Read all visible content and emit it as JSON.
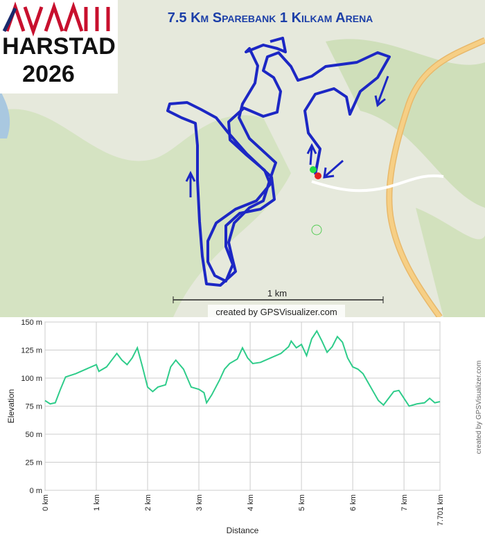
{
  "header": {
    "title": "7.5 Km Sparebank 1 Kilkam Arena",
    "logo": {
      "line1": "HARSTAD",
      "line2": "2026"
    }
  },
  "map": {
    "scale_label": "1 km",
    "credit": "created by GPSVisualizer.com"
  },
  "chart_data": {
    "type": "line",
    "x_label": "Distance",
    "y_label": "Elevation",
    "credit": "created by GPSVisualizer.com",
    "x": [
      0,
      0.1,
      0.2,
      0.3,
      0.4,
      0.6,
      0.8,
      1.0,
      1.05,
      1.2,
      1.3,
      1.4,
      1.5,
      1.6,
      1.7,
      1.8,
      1.9,
      2.0,
      2.1,
      2.2,
      2.35,
      2.45,
      2.55,
      2.7,
      2.85,
      3.0,
      3.1,
      3.15,
      3.25,
      3.4,
      3.5,
      3.6,
      3.75,
      3.85,
      3.95,
      4.05,
      4.2,
      4.4,
      4.6,
      4.75,
      4.8,
      4.9,
      5.0,
      5.1,
      5.2,
      5.3,
      5.4,
      5.5,
      5.6,
      5.7,
      5.8,
      5.9,
      6.0,
      6.1,
      6.2,
      6.3,
      6.4,
      6.5,
      6.6,
      6.7,
      6.8,
      6.9,
      7.0,
      7.1,
      7.25,
      7.4,
      7.5,
      7.6,
      7.701
    ],
    "values": [
      80,
      77,
      78,
      90,
      101,
      104,
      108,
      112,
      106,
      110,
      116,
      122,
      116,
      112,
      118,
      127,
      110,
      92,
      88,
      92,
      94,
      110,
      116,
      108,
      92,
      90,
      87,
      78,
      85,
      98,
      108,
      113,
      117,
      127,
      118,
      113,
      114,
      118,
      122,
      128,
      133,
      127,
      130,
      120,
      135,
      142,
      133,
      123,
      128,
      137,
      132,
      118,
      110,
      108,
      104,
      96,
      88,
      80,
      76,
      82,
      88,
      89,
      82,
      75,
      77,
      78,
      82,
      78,
      79
    ],
    "color": "#2ecc8a",
    "xlim": [
      0,
      7.701
    ],
    "ylim": [
      0,
      150
    ],
    "xticks": [
      {
        "value": 0,
        "label": "0 km"
      },
      {
        "value": 1,
        "label": "1 km"
      },
      {
        "value": 2,
        "label": "2 km"
      },
      {
        "value": 3,
        "label": "3 km"
      },
      {
        "value": 4,
        "label": "4 km"
      },
      {
        "value": 5,
        "label": "5 km"
      },
      {
        "value": 6,
        "label": "6 km"
      },
      {
        "value": 7,
        "label": "7 km"
      },
      {
        "value": 7.701,
        "label": "7.701 km"
      }
    ],
    "yticks": [
      {
        "value": 0,
        "label": "0 m"
      },
      {
        "value": 25,
        "label": "25 m"
      },
      {
        "value": 50,
        "label": "50 m"
      },
      {
        "value": 75,
        "label": "75 m"
      },
      {
        "value": 100,
        "label": "100 m"
      },
      {
        "value": 125,
        "label": "125 m"
      },
      {
        "value": 150,
        "label": "150 m"
      }
    ],
    "grid": true
  }
}
